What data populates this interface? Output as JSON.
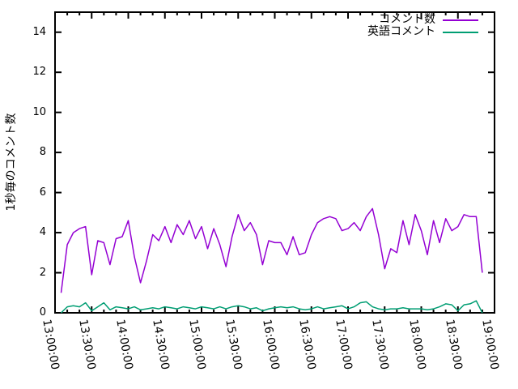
{
  "chart_data": {
    "type": "line",
    "title": "",
    "xlabel": "",
    "ylabel": "1秒毎のコメント数",
    "ylim": [
      0,
      15
    ],
    "ytics": [
      0,
      2,
      4,
      6,
      8,
      10,
      12,
      14
    ],
    "x_range": [
      "13:00:00",
      "19:00:00"
    ],
    "xtics": [
      "13:00:00",
      "13:30:00",
      "14:00:00",
      "14:30:00",
      "15:00:00",
      "15:30:00",
      "16:00:00",
      "16:30:00",
      "17:00:00",
      "17:30:00",
      "18:00:00",
      "18:30:00",
      "19:00:00"
    ],
    "minor_xtic_minutes": 10,
    "grid": false,
    "legend_position": "top-right",
    "background_color": "#ffffff",
    "axis_color": "#000000",
    "x": [
      "13:05",
      "13:10",
      "13:15",
      "13:20",
      "13:25",
      "13:30",
      "13:35",
      "13:40",
      "13:45",
      "13:50",
      "13:55",
      "14:00",
      "14:05",
      "14:10",
      "14:15",
      "14:20",
      "14:25",
      "14:30",
      "14:35",
      "14:40",
      "14:45",
      "14:50",
      "14:55",
      "15:00",
      "15:05",
      "15:10",
      "15:15",
      "15:20",
      "15:25",
      "15:30",
      "15:35",
      "15:40",
      "15:45",
      "15:50",
      "15:55",
      "16:00",
      "16:05",
      "16:10",
      "16:15",
      "16:20",
      "16:25",
      "16:30",
      "16:35",
      "16:40",
      "16:45",
      "16:50",
      "16:55",
      "17:00",
      "17:05",
      "17:10",
      "17:15",
      "17:20",
      "17:25",
      "17:30",
      "17:35",
      "17:40",
      "17:45",
      "17:50",
      "17:55",
      "18:00",
      "18:05",
      "18:10",
      "18:15",
      "18:20",
      "18:25",
      "18:30",
      "18:35",
      "18:40",
      "18:45",
      "18:50"
    ],
    "series": [
      {
        "name": "コメント数",
        "color": "#9400d3",
        "values": [
          1.0,
          3.4,
          4.0,
          4.2,
          4.3,
          1.9,
          3.6,
          3.5,
          2.4,
          3.7,
          3.8,
          4.6,
          2.8,
          1.5,
          2.6,
          3.9,
          3.6,
          4.3,
          3.5,
          4.4,
          3.9,
          4.6,
          3.7,
          4.3,
          3.2,
          4.2,
          3.4,
          2.3,
          3.8,
          4.9,
          4.1,
          4.5,
          3.9,
          2.4,
          3.6,
          3.5,
          3.5,
          2.9,
          3.8,
          2.9,
          3.0,
          3.9,
          4.5,
          4.7,
          4.8,
          4.7,
          4.1,
          4.2,
          4.5,
          4.1,
          4.8,
          5.2,
          3.9,
          2.2,
          3.2,
          3.0,
          4.6,
          3.4,
          4.9,
          4.1,
          2.9,
          4.6,
          3.5,
          4.7,
          4.1,
          4.3,
          4.9,
          4.8,
          4.8,
          2.0
        ]
      },
      {
        "name": "英語コメント",
        "color": "#009e73",
        "values": [
          0.0,
          0.3,
          0.35,
          0.3,
          0.5,
          0.1,
          0.3,
          0.5,
          0.15,
          0.3,
          0.25,
          0.2,
          0.3,
          0.15,
          0.2,
          0.25,
          0.2,
          0.3,
          0.25,
          0.2,
          0.3,
          0.25,
          0.2,
          0.3,
          0.25,
          0.2,
          0.3,
          0.2,
          0.3,
          0.35,
          0.3,
          0.2,
          0.25,
          0.1,
          0.2,
          0.25,
          0.3,
          0.25,
          0.3,
          0.2,
          0.15,
          0.2,
          0.3,
          0.2,
          0.25,
          0.3,
          0.35,
          0.2,
          0.3,
          0.5,
          0.55,
          0.3,
          0.2,
          0.15,
          0.2,
          0.2,
          0.25,
          0.2,
          0.2,
          0.2,
          0.15,
          0.2,
          0.3,
          0.45,
          0.4,
          0.1,
          0.4,
          0.45,
          0.6,
          0.0
        ]
      }
    ]
  }
}
